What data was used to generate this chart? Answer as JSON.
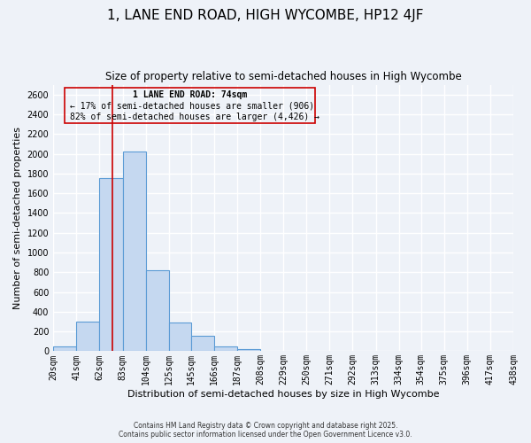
{
  "title": "1, LANE END ROAD, HIGH WYCOMBE, HP12 4JF",
  "subtitle": "Size of property relative to semi-detached houses in High Wycombe",
  "xlabel": "Distribution of semi-detached houses by size in High Wycombe",
  "ylabel": "Number of semi-detached properties",
  "bin_labels": [
    "20sqm",
    "41sqm",
    "62sqm",
    "83sqm",
    "104sqm",
    "125sqm",
    "145sqm",
    "166sqm",
    "187sqm",
    "208sqm",
    "229sqm",
    "250sqm",
    "271sqm",
    "292sqm",
    "313sqm",
    "334sqm",
    "354sqm",
    "375sqm",
    "396sqm",
    "417sqm",
    "438sqm"
  ],
  "bin_edges": [
    20,
    41,
    62,
    83,
    104,
    125,
    145,
    166,
    187,
    208,
    229,
    250,
    271,
    292,
    313,
    334,
    354,
    375,
    396,
    417,
    438
  ],
  "bar_heights": [
    50,
    300,
    1750,
    2020,
    820,
    290,
    155,
    45,
    20,
    0,
    0,
    0,
    0,
    0,
    0,
    0,
    0,
    0,
    0,
    0
  ],
  "bar_color": "#c5d8f0",
  "bar_edge_color": "#5b9bd5",
  "vline_x": 74,
  "vline_color": "#cc0000",
  "annotation_title": "1 LANE END ROAD: 74sqm",
  "annotation_line1": "← 17% of semi-detached houses are smaller (906)",
  "annotation_line2": "82% of semi-detached houses are larger (4,426) →",
  "annotation_box_color": "#cc0000",
  "ylim": [
    0,
    2700
  ],
  "yticks": [
    0,
    200,
    400,
    600,
    800,
    1000,
    1200,
    1400,
    1600,
    1800,
    2000,
    2200,
    2400,
    2600
  ],
  "footer_line1": "Contains HM Land Registry data © Crown copyright and database right 2025.",
  "footer_line2": "Contains public sector information licensed under the Open Government Licence v3.0.",
  "bg_color": "#eef2f8",
  "grid_color": "#ffffff",
  "title_fontsize": 11,
  "subtitle_fontsize": 8.5,
  "axis_label_fontsize": 8,
  "tick_fontsize": 7
}
